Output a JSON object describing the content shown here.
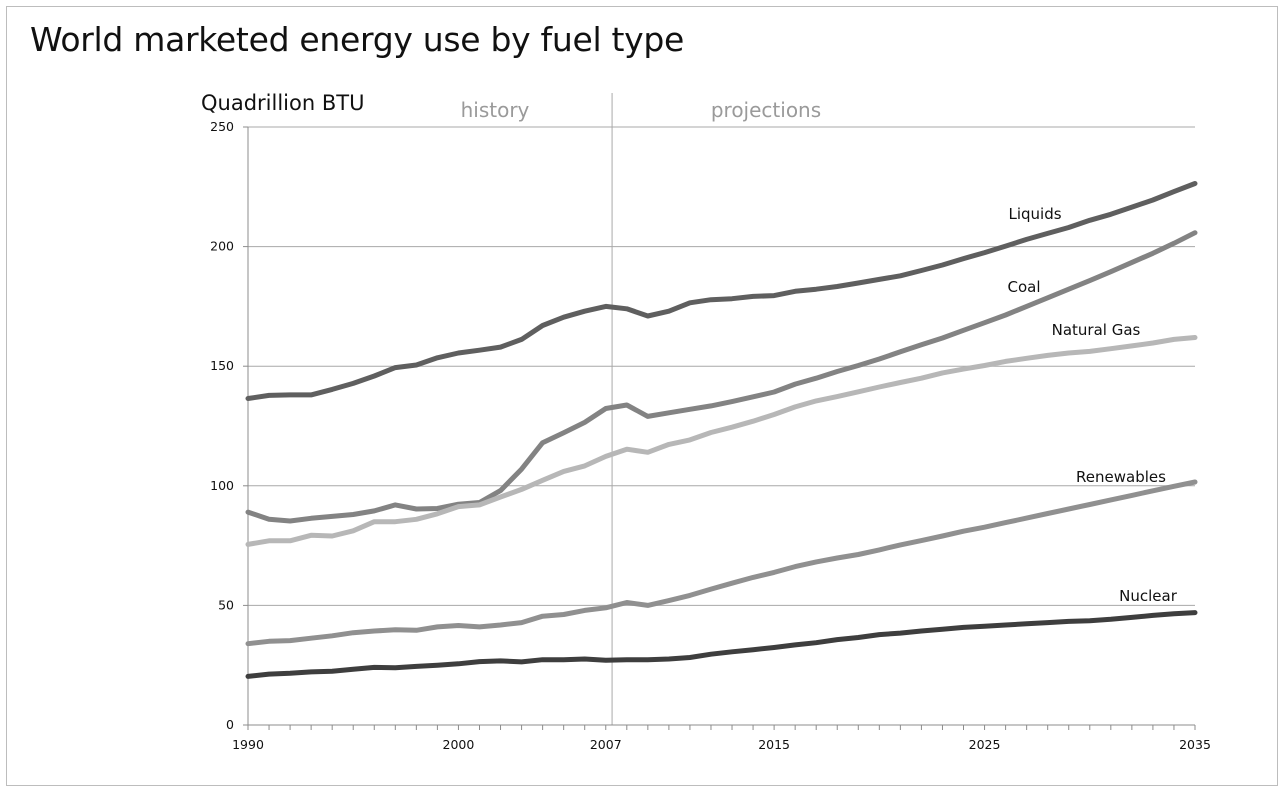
{
  "title": "World marketed energy use by fuel type",
  "chart_data": {
    "type": "line",
    "title": "World marketed energy use by fuel type",
    "ylabel": "Quadrillion BTU",
    "xlabel": "",
    "xlim": [
      1990,
      2035
    ],
    "ylim": [
      0,
      250
    ],
    "yticks": [
      0,
      50,
      100,
      150,
      200,
      250
    ],
    "xticks": [
      1990,
      2000,
      2007,
      2015,
      2025,
      2035
    ],
    "grid": "horizontal",
    "divider_year": 2007.3,
    "regions": {
      "left": "history",
      "right": "projections"
    },
    "x": [
      1990,
      1991,
      1992,
      1993,
      1994,
      1995,
      1996,
      1997,
      1998,
      1999,
      2000,
      2001,
      2002,
      2003,
      2004,
      2005,
      2006,
      2007,
      2008,
      2009,
      2010,
      2011,
      2012,
      2013,
      2014,
      2015,
      2016,
      2017,
      2018,
      2019,
      2020,
      2021,
      2022,
      2023,
      2024,
      2025,
      2026,
      2027,
      2028,
      2029,
      2030,
      2031,
      2032,
      2033,
      2034,
      2035
    ],
    "series": [
      {
        "name": "Liquids",
        "color": "#5f5f5f",
        "values": [
          136.5,
          137.8,
          138,
          138,
          140.3,
          142.8,
          145.9,
          149.4,
          150.5,
          153.5,
          155.5,
          156.7,
          158,
          161.2,
          167,
          170.5,
          173,
          175,
          174,
          171,
          173,
          176.5,
          177.8,
          178.2,
          179.2,
          179.5,
          181.3,
          182.2,
          183.3,
          184.8,
          186.3,
          187.8,
          190,
          192.3,
          195,
          197.5,
          200.2,
          203,
          205.5,
          208,
          211,
          213.5,
          216.5,
          219.5,
          223,
          226.4
        ]
      },
      {
        "name": "Coal",
        "color": "#838383",
        "values": [
          89,
          86,
          85.3,
          86.4,
          87.2,
          88,
          89.5,
          92,
          90.3,
          90.5,
          92.3,
          93,
          98,
          107,
          118,
          122.2,
          126.5,
          132.3,
          133.8,
          129,
          130.5,
          132,
          133.4,
          135.2,
          137.2,
          139.2,
          142.5,
          145,
          147.8,
          150.3,
          153,
          156,
          159,
          161.8,
          165,
          168.2,
          171.4,
          175,
          178.6,
          182.2,
          185.8,
          189.5,
          193.4,
          197.2,
          201.4,
          205.8
        ]
      },
      {
        "name": "Natural Gas",
        "color": "#b7b7b7",
        "values": [
          75.5,
          77,
          77,
          79.3,
          79,
          81.2,
          85,
          85,
          86,
          88.3,
          91.3,
          92,
          95.3,
          98.5,
          102.3,
          106,
          108.3,
          112.3,
          115.3,
          114,
          117.3,
          119.2,
          122.3,
          124.5,
          127,
          129.8,
          133,
          135.5,
          137.3,
          139.3,
          141.3,
          143.2,
          145,
          147.2,
          148.8,
          150.3,
          152,
          153.3,
          154.5,
          155.5,
          156.2,
          157.3,
          158.5,
          159.7,
          161.2,
          162
        ]
      },
      {
        "name": "Renewables",
        "color": "#909090",
        "values": [
          34,
          35,
          35.3,
          36.3,
          37.3,
          38.6,
          39.3,
          39.8,
          39.6,
          41,
          41.6,
          41,
          41.8,
          42.8,
          45.5,
          46.2,
          47.9,
          49,
          51.2,
          50,
          52,
          54.2,
          56.8,
          59.3,
          61.7,
          63.8,
          66.2,
          68.2,
          69.8,
          71.3,
          73.2,
          75.3,
          77.1,
          79,
          81,
          82.7,
          84.6,
          86.5,
          88.4,
          90.3,
          92.2,
          94.1,
          96,
          97.9,
          99.8,
          101.6
        ]
      },
      {
        "name": "Nuclear",
        "color": "#3e3e3e",
        "values": [
          20.3,
          21.3,
          21.6,
          22.2,
          22.5,
          23.3,
          24.1,
          23.9,
          24.5,
          25,
          25.6,
          26.5,
          26.8,
          26.4,
          27.3,
          27.3,
          27.6,
          27.1,
          27.3,
          27.3,
          27.6,
          28.2,
          29.6,
          30.6,
          31.5,
          32.4,
          33.5,
          34.4,
          35.7,
          36.6,
          37.8,
          38.4,
          39.3,
          40,
          40.8,
          41.3,
          41.8,
          42.3,
          42.8,
          43.3,
          43.6,
          44.2,
          45,
          45.8,
          46.5,
          47
        ]
      }
    ]
  }
}
